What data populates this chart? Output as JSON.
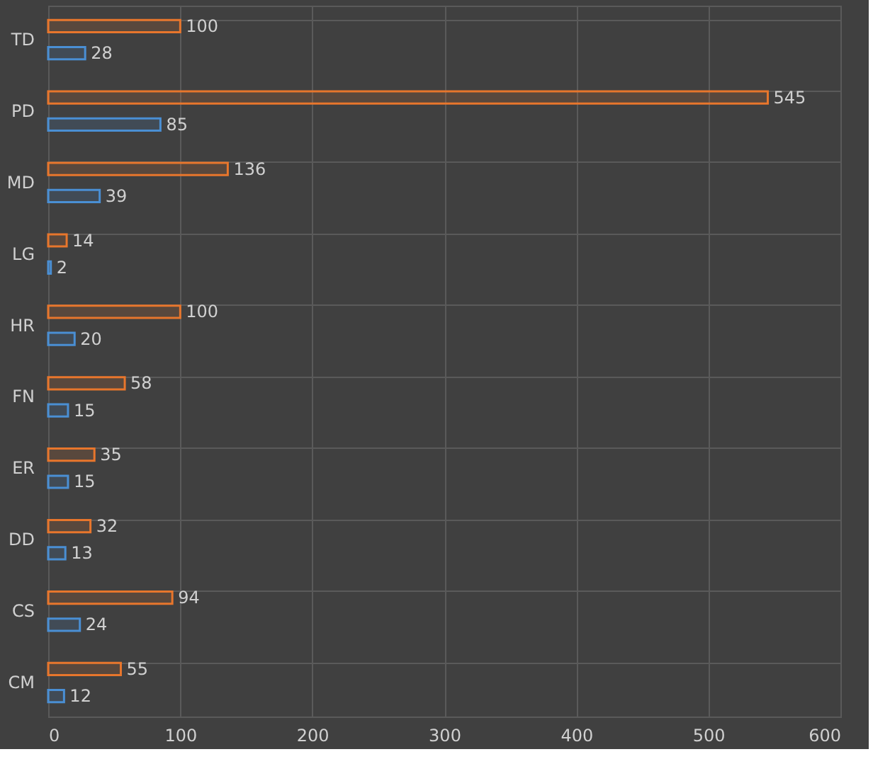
{
  "chart_data": {
    "type": "bar",
    "orientation": "horizontal",
    "categories": [
      "TD",
      "PD",
      "MD",
      "LG",
      "HR",
      "FN",
      "ER",
      "DD",
      "CS",
      "CM"
    ],
    "series": [
      {
        "color": "#e8762c",
        "values": [
          100,
          545,
          136,
          14,
          100,
          58,
          35,
          32,
          94,
          55
        ]
      },
      {
        "color": "#4a8fd4",
        "values": [
          28,
          85,
          39,
          2,
          20,
          15,
          15,
          13,
          24,
          12
        ]
      }
    ],
    "xlim": [
      0,
      600
    ],
    "xticks": [
      0,
      100,
      200,
      300,
      400,
      500,
      600
    ],
    "grid": true,
    "data_labels": true
  }
}
